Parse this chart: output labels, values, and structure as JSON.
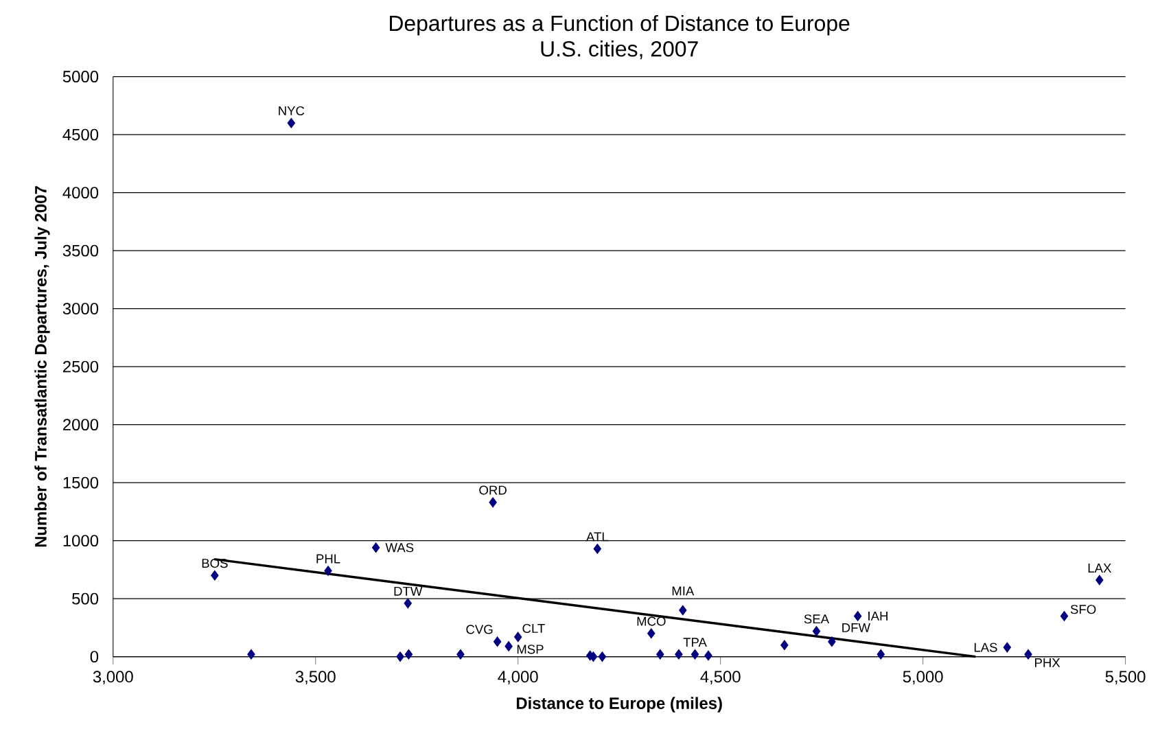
{
  "chart_data": {
    "type": "scatter",
    "title": "Departures as a Function of Distance to Europe",
    "subtitle": "U.S. cities, 2007",
    "xlabel": "Distance to Europe (miles)",
    "ylabel": "Number of Transatlantic Departures, July 2007",
    "xlim": [
      3000,
      5500
    ],
    "xticks": [
      {
        "value": 3000,
        "label": "3,000"
      },
      {
        "value": 3500,
        "label": "3,500"
      },
      {
        "value": 4000,
        "label": "4,000"
      },
      {
        "value": 4500,
        "label": "4,500"
      },
      {
        "value": 5000,
        "label": "5,000"
      },
      {
        "value": 5500,
        "label": "5,500"
      }
    ],
    "ylim": [
      0,
      5000
    ],
    "yticks": [
      0,
      500,
      1000,
      1500,
      2000,
      2500,
      3000,
      3500,
      4000,
      4500,
      5000
    ],
    "grid": "y",
    "series": [
      {
        "color": "#000080",
        "marker": "diamond",
        "x": [
          3251,
          3341,
          3440,
          3531,
          3649,
          3709,
          3728,
          3730,
          3858,
          3938,
          3949,
          3977,
          4000,
          4178,
          4186,
          4196,
          4208,
          4329,
          4351,
          4397,
          4407,
          4437,
          4470,
          4658,
          4737,
          4775,
          4839,
          4896,
          5208,
          5260,
          5349,
          5436
        ],
        "values": [
          700,
          20,
          4600,
          740,
          940,
          0,
          460,
          20,
          20,
          1330,
          130,
          90,
          170,
          10,
          0,
          930,
          0,
          200,
          20,
          20,
          400,
          20,
          10,
          100,
          220,
          130,
          350,
          20,
          80,
          20,
          350,
          660
        ]
      },
      {
        "type": "line",
        "color": "#000000",
        "marker": "none",
        "line_style": "solid",
        "x": [
          3250,
          5130
        ],
        "values": [
          840,
          0
        ]
      }
    ],
    "annotations": [
      {
        "text": "BOS",
        "x": 3251,
        "y": 700
      },
      {
        "text": "NYC",
        "x": 3440,
        "y": 4600
      },
      {
        "text": "PHL",
        "x": 3531,
        "y": 740
      },
      {
        "text": "WAS",
        "x": 3649,
        "y": 940
      },
      {
        "text": "DTW",
        "x": 3728,
        "y": 460
      },
      {
        "text": "ORD",
        "x": 3938,
        "y": 1330
      },
      {
        "text": "CVG",
        "x": 3949,
        "y": 130
      },
      {
        "text": "MSP",
        "x": 3977,
        "y": 90
      },
      {
        "text": "CLT",
        "x": 4000,
        "y": 170
      },
      {
        "text": "ATL",
        "x": 4196,
        "y": 930
      },
      {
        "text": "MCO",
        "x": 4329,
        "y": 200
      },
      {
        "text": "MIA",
        "x": 4407,
        "y": 400
      },
      {
        "text": "TPA",
        "x": 4437,
        "y": 20
      },
      {
        "text": "SEA",
        "x": 4737,
        "y": 220
      },
      {
        "text": "DFW",
        "x": 4775,
        "y": 130
      },
      {
        "text": "IAH",
        "x": 4839,
        "y": 350
      },
      {
        "text": "LAS",
        "x": 5208,
        "y": 80
      },
      {
        "text": "PHX",
        "x": 5260,
        "y": 20
      },
      {
        "text": "SFO",
        "x": 5349,
        "y": 350
      },
      {
        "text": "LAX",
        "x": 5436,
        "y": 660
      }
    ]
  }
}
